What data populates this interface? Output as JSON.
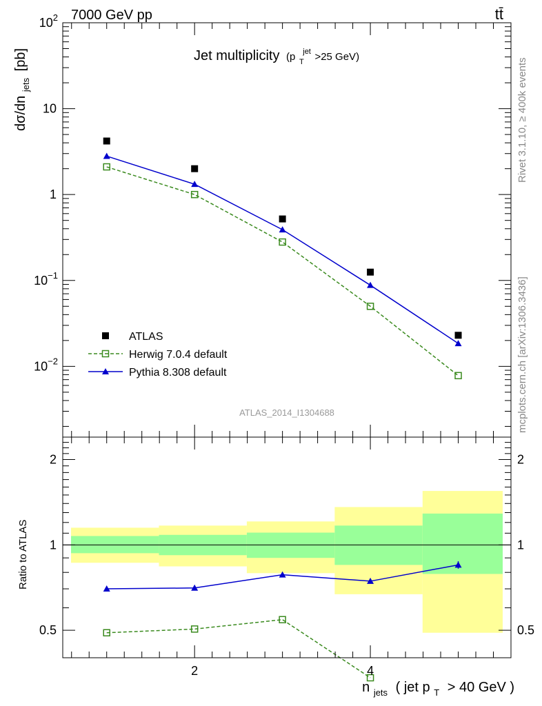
{
  "header": {
    "left": "7000 GeV pp",
    "right": "tt̄"
  },
  "side_labels": {
    "rivet": "Rivet 3.1.10, ≥ 400k events",
    "mcplots": "mcplots.cern.ch [arXiv:1306.3436]"
  },
  "watermark": "ATLAS_2014_I1304688",
  "title": {
    "main": "Jet multiplicity",
    "open": "(p",
    "sub": "T",
    "sup": "jet",
    "close": ">25 GeV)"
  },
  "ylabel_top": {
    "main": "dσ/dn",
    "sub": "jets",
    "unit": "[pb]"
  },
  "ylabel_bottom": "Ratio to ATLAS",
  "xlabel": {
    "n": "n",
    "n_sub": "jets",
    "mid": "( jet p",
    "p_sub": "T",
    "tail": "> 40 GeV )"
  },
  "legend": {
    "position": "bottom-left",
    "entries": [
      {
        "series": "ATLAS",
        "label": "ATLAS"
      },
      {
        "series": "Herwig",
        "label": "Herwig 7.0.4 default"
      },
      {
        "series": "Pythia",
        "label": "Pythia 8.308 default"
      }
    ]
  },
  "colors": {
    "atlas": "#000000",
    "herwig": "#3a8a1e",
    "pythia": "#0000cc",
    "band_inner": "#99ff99",
    "band_outer": "#ffff99"
  },
  "chart_data": [
    {
      "type": "scatter",
      "panel": "main",
      "xlim": [
        0.5,
        5.6
      ],
      "ylim": [
        0.0015,
        100
      ],
      "log_y": true,
      "y_ticks": [
        {
          "value": 100,
          "mant": "10",
          "exp": "2"
        },
        {
          "value": 10,
          "mant": "10",
          "exp": ""
        },
        {
          "value": 1,
          "mant": "1",
          "exp": ""
        },
        {
          "value": 0.1,
          "mant": "10",
          "exp": "−1"
        },
        {
          "value": 0.01,
          "mant": "10",
          "exp": "−2"
        }
      ],
      "x": [
        1,
        2,
        3,
        4,
        5
      ],
      "series": [
        {
          "name": "ATLAS",
          "values": [
            4.2,
            2.0,
            0.52,
            0.125,
            0.023
          ]
        },
        {
          "name": "Herwig 7.0.4 default",
          "values": [
            2.1,
            1.0,
            0.28,
            0.05,
            0.0078
          ]
        },
        {
          "name": "Pythia 8.308 default",
          "values": [
            2.8,
            1.32,
            0.39,
            0.088,
            0.0185
          ]
        }
      ]
    },
    {
      "type": "line",
      "panel": "ratio",
      "xlim": [
        0.5,
        5.6
      ],
      "ylim": [
        0.4,
        2.4
      ],
      "log_y": true,
      "y_ticks": [
        {
          "value": 2,
          "label": "2"
        },
        {
          "value": 1,
          "label": "1"
        },
        {
          "value": 0.5,
          "label": "0.5"
        }
      ],
      "x_ticks": [
        {
          "value": 2,
          "label": "2"
        },
        {
          "value": 4,
          "label": "4"
        }
      ],
      "x": [
        1,
        2,
        3,
        4,
        5
      ],
      "series": [
        {
          "name": "Herwig 7.0.4 default",
          "values": [
            0.49,
            0.505,
            0.545,
            0.34,
            null
          ]
        },
        {
          "name": "Pythia 8.308 default",
          "values": [
            0.7,
            0.705,
            0.785,
            0.745,
            0.85
          ]
        }
      ],
      "bands": [
        {
          "x": [
            0.5,
            1.5
          ],
          "inner": [
            0.935,
            1.075
          ],
          "outer": [
            0.865,
            1.15
          ]
        },
        {
          "x": [
            1.5,
            2.5
          ],
          "inner": [
            0.92,
            1.085
          ],
          "outer": [
            0.84,
            1.17
          ]
        },
        {
          "x": [
            2.5,
            3.5
          ],
          "inner": [
            0.9,
            1.105
          ],
          "outer": [
            0.795,
            1.21
          ]
        },
        {
          "x": [
            3.5,
            4.5
          ],
          "inner": [
            0.85,
            1.17
          ],
          "outer": [
            0.67,
            1.36
          ]
        },
        {
          "x": [
            4.5,
            5.5
          ],
          "inner": [
            0.79,
            1.29
          ],
          "outer": [
            0.49,
            1.55
          ]
        }
      ]
    }
  ]
}
